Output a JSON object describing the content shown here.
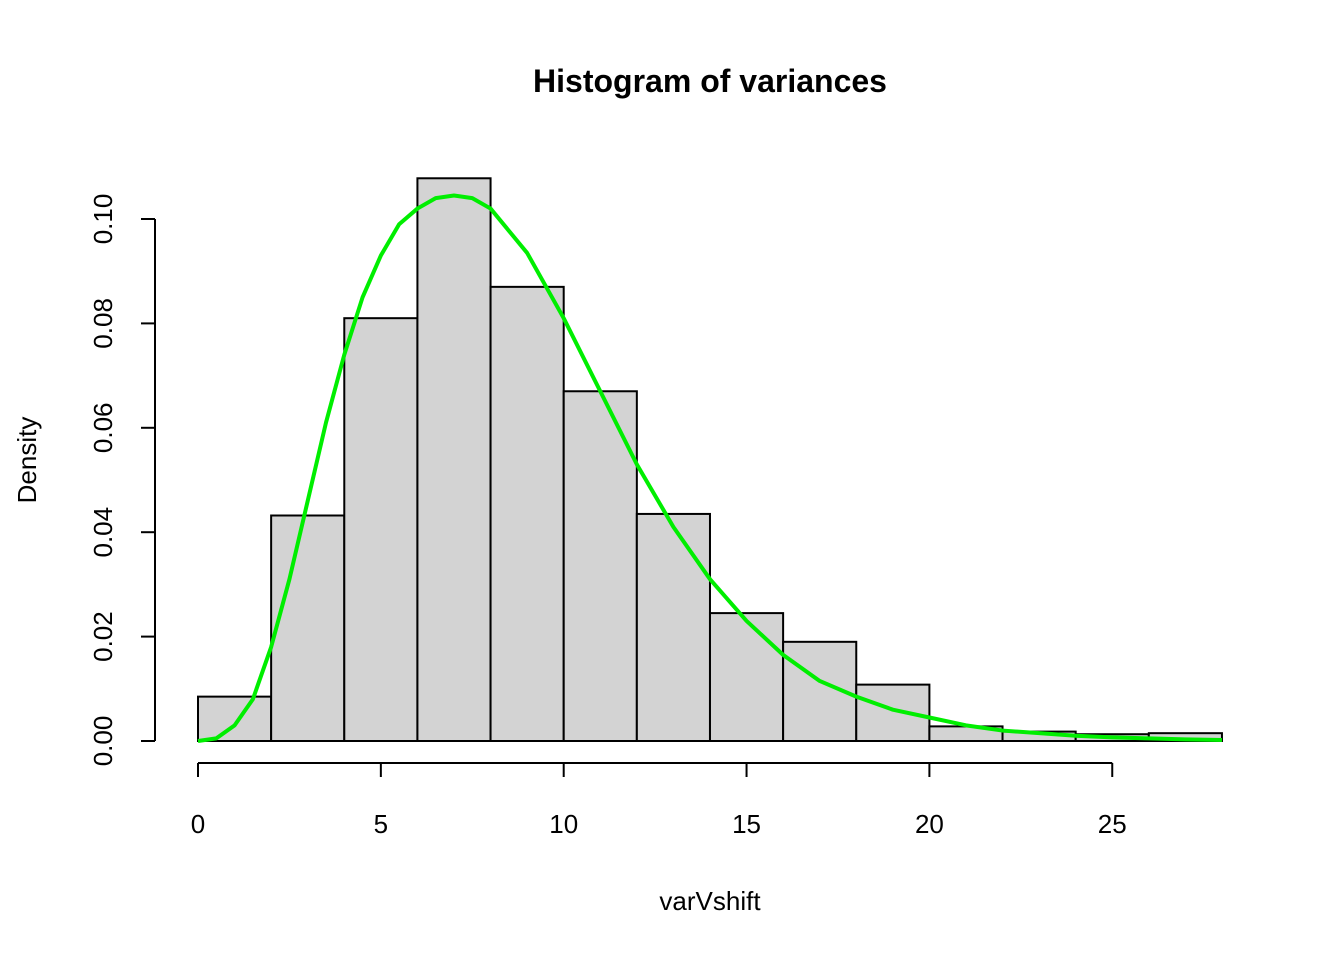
{
  "chart_data": {
    "type": "bar",
    "title": "Histogram of variances",
    "xlabel": "varVshift",
    "ylabel": "Density",
    "bins": [
      {
        "from": 0,
        "to": 2,
        "density": 0.0085
      },
      {
        "from": 2,
        "to": 4,
        "density": 0.0432
      },
      {
        "from": 4,
        "to": 6,
        "density": 0.081
      },
      {
        "from": 6,
        "to": 8,
        "density": 0.1078
      },
      {
        "from": 8,
        "to": 10,
        "density": 0.087
      },
      {
        "from": 10,
        "to": 12,
        "density": 0.067
      },
      {
        "from": 12,
        "to": 14,
        "density": 0.0435
      },
      {
        "from": 14,
        "to": 16,
        "density": 0.0245
      },
      {
        "from": 16,
        "to": 18,
        "density": 0.019
      },
      {
        "from": 18,
        "to": 20,
        "density": 0.0108
      },
      {
        "from": 20,
        "to": 22,
        "density": 0.0028
      },
      {
        "from": 22,
        "to": 24,
        "density": 0.0018
      },
      {
        "from": 24,
        "to": 26,
        "density": 0.0013
      },
      {
        "from": 26,
        "to": 28,
        "density": 0.0015
      }
    ],
    "density_curve": {
      "color": "#00ee00",
      "x": [
        0,
        0.5,
        1,
        1.5,
        2,
        2.5,
        3,
        3.5,
        4,
        4.5,
        5,
        5.5,
        6,
        6.5,
        7,
        7.5,
        8,
        9,
        10,
        11,
        12,
        13,
        14,
        15,
        16,
        17,
        18,
        19,
        20,
        21,
        22,
        23,
        24,
        25,
        26,
        27,
        28
      ],
      "y": [
        0,
        0.0005,
        0.003,
        0.008,
        0.018,
        0.031,
        0.046,
        0.061,
        0.074,
        0.085,
        0.093,
        0.099,
        0.102,
        0.104,
        0.1045,
        0.104,
        0.102,
        0.0935,
        0.081,
        0.067,
        0.053,
        0.041,
        0.031,
        0.023,
        0.0165,
        0.0115,
        0.0085,
        0.006,
        0.0045,
        0.003,
        0.002,
        0.0015,
        0.001,
        0.0007,
        0.0005,
        0.0003,
        0.0002
      ]
    },
    "x_ticks": [
      0,
      5,
      10,
      15,
      20,
      25
    ],
    "y_ticks": [
      0.0,
      0.02,
      0.04,
      0.06,
      0.08,
      0.1
    ],
    "x_tick_labels": [
      "0",
      "5",
      "10",
      "15",
      "20",
      "25"
    ],
    "y_tick_labels": [
      "0.00",
      "0.02",
      "0.04",
      "0.06",
      "0.08",
      "0.10"
    ],
    "xlim": [
      0,
      28
    ],
    "ylim": [
      0,
      0.1078
    ],
    "bar_color": "#d3d3d3",
    "grid": false
  }
}
